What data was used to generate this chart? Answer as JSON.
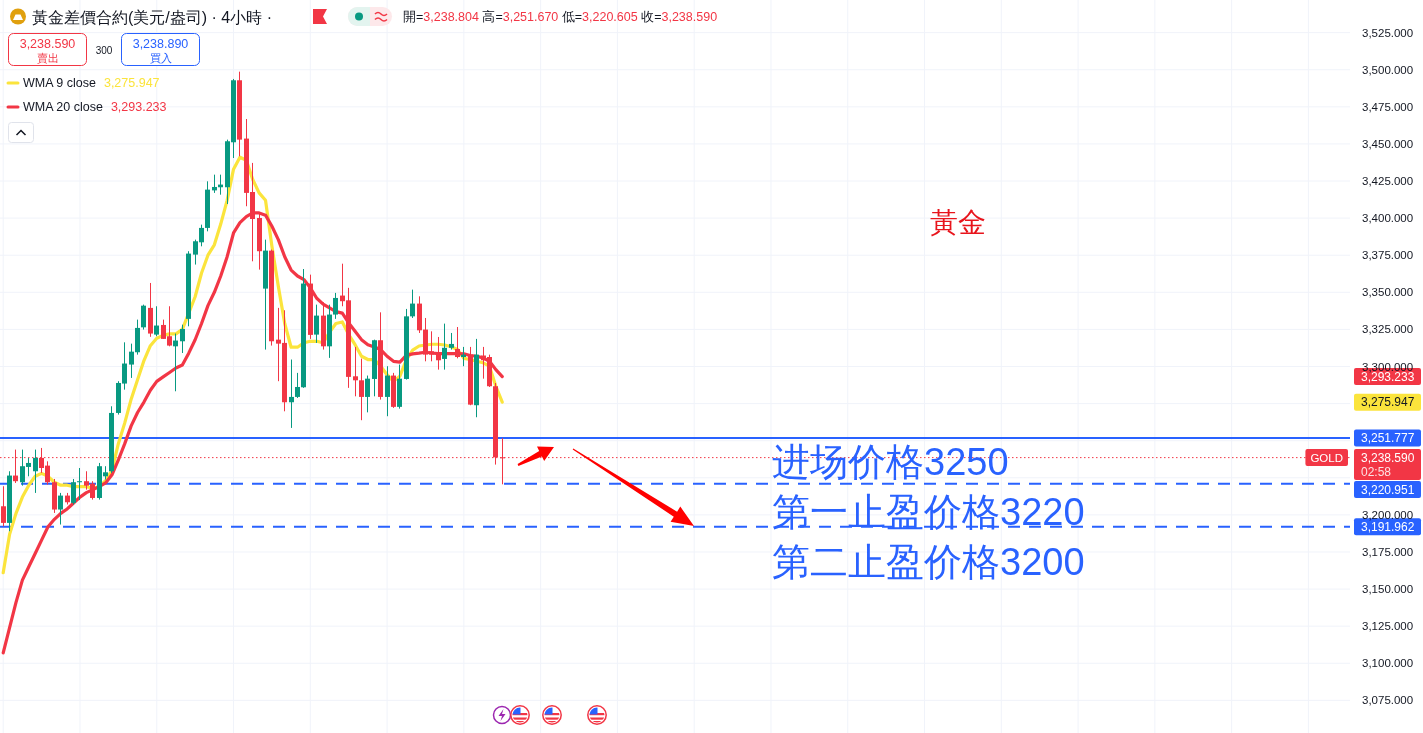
{
  "chart_data": {
    "type": "candlestick",
    "title": "黃金差價合約(美元/盎司) · 4小時 ·",
    "subtitle": "開=3,238.804 高=3,251.670 低=3,220.605 收=3,238.590",
    "categories": [
      null,
      null,
      null,
      null,
      null,
      null,
      null,
      null,
      null,
      null,
      null,
      null,
      null,
      null,
      null,
      null,
      null,
      null,
      null,
      null,
      null,
      null,
      null,
      null,
      null,
      null,
      null,
      null,
      null,
      null,
      null,
      null,
      null,
      null,
      null,
      null,
      null,
      null,
      null,
      null,
      null,
      null,
      null,
      null,
      null,
      null,
      null,
      null,
      null,
      null,
      null,
      null,
      null,
      null,
      null,
      null,
      null,
      null,
      null,
      null,
      null,
      null,
      null,
      null,
      null,
      null,
      null,
      null,
      null,
      null,
      null,
      null,
      null,
      null,
      null,
      null,
      null,
      null,
      null,
      null,
      null,
      null,
      null,
      null,
      null,
      null,
      null,
      null,
      null,
      null,
      null,
      null,
      null,
      null,
      null,
      null,
      null,
      null,
      null,
      null,
      null,
      null,
      null,
      null,
      null,
      null,
      null,
      null,
      null,
      null,
      null,
      null,
      null,
      null,
      null,
      null,
      null,
      null,
      null,
      null,
      null,
      null,
      null,
      null,
      null,
      null,
      null,
      null,
      null,
      null,
      null,
      null,
      null,
      null,
      null,
      null,
      null,
      null,
      null,
      null,
      null,
      null,
      null,
      null,
      null,
      null,
      null,
      null,
      null,
      null,
      null,
      null,
      null,
      null,
      null,
      null,
      null,
      null,
      null,
      null,
      null,
      null,
      null,
      null,
      null,
      null,
      null,
      null,
      null,
      null,
      null,
      null,
      null,
      null,
      null,
      null,
      null,
      null,
      null,
      null,
      null,
      null,
      null,
      null,
      null,
      null,
      null,
      null,
      null,
      null,
      null,
      null,
      null,
      null,
      null,
      null,
      null,
      null,
      null,
      null,
      null,
      null,
      null,
      null,
      null,
      null,
      null,
      null,
      null,
      null,
      null
    ],
    "ohlc": [
      [
        3205.8,
        3219.3,
        3192.3,
        3194.6
      ],
      [
        3194.6,
        3229.4,
        3189.0,
        3226.5
      ],
      [
        3226.5,
        3244.0,
        3221.5,
        3222.7
      ],
      [
        3222.0,
        3244.0,
        3219.7,
        3232.8
      ],
      [
        3232.3,
        3238.4,
        3226.0,
        3235.0
      ],
      [
        3229.4,
        3244.0,
        3214.8,
        3238.4
      ],
      [
        3238.4,
        3245.1,
        3228.3,
        3231.6
      ],
      [
        3233.2,
        3236.1,
        3220.4,
        3222.0
      ],
      [
        3222.0,
        3224.2,
        3201.3,
        3203.6
      ],
      [
        3203.6,
        3214.8,
        3193.5,
        3213.0
      ],
      [
        3213.0,
        3214.8,
        3207.0,
        3208.5
      ],
      [
        3208.1,
        3224.2,
        3207.0,
        3222.0
      ],
      [
        3222.0,
        3231.6,
        3210.0,
        3222.7
      ],
      [
        3222.7,
        3229.4,
        3217.0,
        3219.7
      ],
      [
        3221.1,
        3222.7,
        3210.3,
        3211.4
      ],
      [
        3211.4,
        3235.0,
        3210.3,
        3232.8
      ],
      [
        3226.0,
        3232.8,
        3223.8,
        3228.7
      ],
      [
        3229.4,
        3273.2,
        3228.3,
        3268.7
      ],
      [
        3268.7,
        3290.1,
        3267.6,
        3288.9
      ],
      [
        3288.5,
        3316.3,
        3284.4,
        3302.0
      ],
      [
        3301.3,
        3315.4,
        3292.3,
        3310.0
      ],
      [
        3309.6,
        3331.6,
        3308.0,
        3326.0
      ],
      [
        3326.4,
        3341.7,
        3324.9,
        3341.0
      ],
      [
        3339.5,
        3356.3,
        3320.0,
        3322.2
      ],
      [
        3321.5,
        3340.6,
        3320.4,
        3327.6
      ],
      [
        3328.0,
        3331.6,
        3318.6,
        3318.6
      ],
      [
        3320.4,
        3340.6,
        3313.6,
        3314.1
      ],
      [
        3313.6,
        3322.2,
        3283.3,
        3317.5
      ],
      [
        3317.0,
        3328.2,
        3309.1,
        3325.3
      ],
      [
        3332.1,
        3377.7,
        3327.1,
        3376.1
      ],
      [
        3375.4,
        3385.5,
        3368.7,
        3384.4
      ],
      [
        3383.7,
        3395.6,
        3381.0,
        3393.4
      ],
      [
        3393.4,
        3424.8,
        3391.1,
        3419.2
      ],
      [
        3418.7,
        3429.3,
        3417.0,
        3421.0
      ],
      [
        3420.8,
        3429.3,
        3415.8,
        3422.6
      ],
      [
        3420.8,
        3452.9,
        3409.5,
        3451.8
      ],
      [
        3451.1,
        3493.8,
        3440.5,
        3492.9
      ],
      [
        3492.9,
        3498.7,
        3441.7,
        3452.9
      ],
      [
        3453.6,
        3466.8,
        3408.0,
        3417.0
      ],
      [
        3417.6,
        3437.2,
        3370.9,
        3399.4
      ],
      [
        3400.1,
        3403.5,
        3365.3,
        3377.7
      ],
      [
        3352.5,
        3385.5,
        3311.4,
        3378.1
      ],
      [
        3378.1,
        3378.8,
        3314.1,
        3317.0
      ],
      [
        3318.1,
        3339.5,
        3290.1,
        3315.4
      ],
      [
        3315.9,
        3337.9,
        3269.8,
        3275.9
      ],
      [
        3275.9,
        3304.7,
        3258.6,
        3279.5
      ],
      [
        3279.5,
        3295.7,
        3278.8,
        3286.2
      ],
      [
        3286.0,
        3365.7,
        3285.6,
        3355.9
      ],
      [
        3355.9,
        3361.9,
        3318.6,
        3321.3
      ],
      [
        3321.5,
        3341.7,
        3315.9,
        3334.3
      ],
      [
        3334.3,
        3343.3,
        3311.4,
        3313.6
      ],
      [
        3313.6,
        3341.7,
        3305.8,
        3335.0
      ],
      [
        3335.0,
        3349.6,
        3332.1,
        3346.2
      ],
      [
        3347.8,
        3369.3,
        3340.6,
        3344.0
      ],
      [
        3344.6,
        3353.0,
        3285.6,
        3293.0
      ],
      [
        3293.4,
        3313.2,
        3279.9,
        3290.7
      ],
      [
        3290.7,
        3305.3,
        3263.8,
        3279.5
      ],
      [
        3279.5,
        3293.9,
        3269.1,
        3291.8
      ],
      [
        3291.6,
        3318.1,
        3279.9,
        3317.7
      ],
      [
        3317.7,
        3336.5,
        3277.7,
        3279.5
      ],
      [
        3279.5,
        3300.2,
        3266.5,
        3293.9
      ],
      [
        3293.9,
        3295.7,
        3272.1,
        3272.8
      ],
      [
        3272.8,
        3301.3,
        3271.6,
        3291.8
      ],
      [
        3291.6,
        3338.8,
        3291.2,
        3333.8
      ],
      [
        3333.8,
        3351.8,
        3332.7,
        3342.4
      ],
      [
        3342.4,
        3347.3,
        3322.6,
        3324.4
      ],
      [
        3324.9,
        3332.7,
        3303.5,
        3308.0
      ],
      [
        3310.3,
        3323.7,
        3303.5,
        3308.0
      ],
      [
        3308.0,
        3319.9,
        3297.9,
        3304.2
      ],
      [
        3305.1,
        3328.9,
        3297.9,
        3312.6
      ],
      [
        3312.6,
        3322.6,
        3311.4,
        3315.2
      ],
      [
        3311.8,
        3326.6,
        3305.5,
        3306.4
      ],
      [
        3306.4,
        3313.2,
        3300.2,
        3308.0
      ],
      [
        3308.0,
        3313.2,
        3273.9,
        3274.3
      ],
      [
        3273.9,
        3318.6,
        3265.8,
        3308.0
      ],
      [
        3307.4,
        3313.2,
        3291.8,
        3304.2
      ],
      [
        3306.4,
        3308.0,
        3286.2,
        3286.7
      ],
      [
        3286.7,
        3288.9,
        3233.9,
        3238.8
      ],
      [
        3238.804,
        3251.67,
        3220.605,
        3238.59
      ],
      null,
      null,
      null,
      null,
      null,
      null,
      null,
      null,
      null,
      null,
      null,
      null,
      null,
      null,
      null,
      null,
      null,
      null,
      null,
      null,
      null,
      null,
      null,
      null,
      null,
      null,
      null,
      null,
      null,
      null,
      null,
      null,
      null,
      null,
      null,
      null,
      null,
      null,
      null,
      null,
      null,
      null,
      null,
      null,
      null,
      null,
      null,
      null,
      null,
      null,
      null,
      null,
      null,
      null,
      null,
      null,
      null,
      null,
      null,
      null,
      null,
      null,
      null,
      null,
      null,
      null,
      null,
      null,
      null,
      null,
      null,
      null,
      null,
      null,
      null,
      null,
      null,
      null,
      null,
      null,
      null,
      null,
      null,
      null,
      null,
      null,
      null,
      null,
      null,
      null,
      null,
      null,
      null,
      null,
      null,
      null,
      null,
      null,
      null,
      null,
      null,
      null,
      null,
      null,
      null,
      null,
      null,
      null,
      null,
      null,
      null,
      null,
      null,
      null,
      null,
      null,
      null,
      null,
      null,
      null,
      null,
      null,
      null,
      null,
      null,
      null,
      null,
      null,
      null,
      null,
      null,
      null
    ],
    "colors": [
      "#f23645",
      "#089981",
      "#f23645",
      "#089981",
      "#089981",
      "#089981",
      "#f23645",
      "#f23645",
      "#f23645",
      "#089981",
      "#f23645",
      "#089981",
      "#089981",
      "#f23645",
      "#f23645",
      "#089981",
      "#089981",
      "#089981",
      "#089981",
      "#089981",
      "#089981",
      "#089981",
      "#089981",
      "#f23645",
      "#089981",
      "#f23645",
      "#f23645",
      "#089981",
      "#089981",
      "#089981",
      "#089981",
      "#089981",
      "#089981",
      "#089981",
      "#089981",
      "#089981",
      "#089981",
      "#f23645",
      "#f23645",
      "#f23645",
      "#f23645",
      "#089981",
      "#f23645",
      "#f23645",
      "#f23645",
      "#089981",
      "#089981",
      "#089981",
      "#f23645",
      "#089981",
      "#f23645",
      "#089981",
      "#089981",
      "#f23645",
      "#f23645",
      "#f23645",
      "#f23645",
      "#089981",
      "#089981",
      "#f23645",
      "#089981",
      "#f23645",
      "#089981",
      "#089981",
      "#089981",
      "#f23645",
      "#f23645",
      "#f23645",
      "#f23645",
      "#089981",
      "#089981",
      "#f23645",
      "#089981",
      "#f23645",
      "#089981",
      "#f23645",
      "#f23645",
      "#f23645",
      "#f23645",
      null,
      null,
      null,
      null,
      null,
      null,
      null,
      null,
      null,
      null,
      null,
      null,
      null,
      null,
      null,
      null,
      null,
      null,
      null,
      null,
      null,
      null,
      null,
      null,
      null,
      null,
      null,
      null,
      null,
      null,
      null,
      null,
      null,
      null,
      null,
      null,
      null,
      null,
      null,
      null,
      null,
      null,
      null,
      null,
      null,
      null,
      null,
      null,
      null,
      null,
      null,
      null,
      null,
      null,
      null,
      null,
      null,
      null,
      null,
      null,
      null,
      null,
      null,
      null,
      null,
      null,
      null,
      null,
      null,
      null,
      null,
      null,
      null,
      null,
      null,
      null,
      null,
      null,
      null,
      null,
      null,
      null,
      null,
      null,
      null,
      null,
      null,
      null,
      null,
      null,
      null,
      null,
      null,
      null,
      null,
      null,
      null,
      null,
      null,
      null,
      null,
      null,
      null,
      null,
      null,
      null,
      null,
      null,
      null,
      null,
      null,
      null,
      null,
      null,
      null,
      null,
      null,
      null,
      null,
      null,
      null,
      null,
      null,
      null,
      null,
      null,
      null,
      null,
      null,
      null,
      null,
      null
    ],
    "series": [
      {
        "name": "WMA 9 close",
        "type": "line",
        "color": "#fbe43c",
        "values": [
          3161,
          3187,
          3201,
          3212,
          3220,
          3226,
          3228,
          3226,
          3222,
          3220,
          3220,
          3219,
          3219,
          3219,
          3218,
          3219,
          3223,
          3230,
          3248,
          3262,
          3278,
          3291,
          3304,
          3314,
          3319,
          3321,
          3322,
          3322,
          3325,
          3336,
          3347,
          3363,
          3375,
          3382,
          3396,
          3412,
          3433,
          3441,
          3439,
          3426,
          3417,
          3412,
          3381,
          3354,
          3329,
          3313,
          3313,
          3316,
          3317,
          3317,
          3316,
          3323,
          3329,
          3330,
          3321.5,
          3314.7,
          3306.9,
          3304.7,
          3304.7,
          3300.2,
          3294.5,
          3290.0,
          3293.4,
          3304.5,
          3311,
          3313.8,
          3314.5,
          3315,
          3315,
          3314.5,
          3313.3,
          3311.5,
          3305.5,
          3304.7,
          3303.5,
          3302.5,
          3300.2,
          3286.7,
          3275.947,
          null,
          null,
          null,
          null,
          null,
          null,
          null,
          null,
          null,
          null,
          null,
          null,
          null,
          null,
          null,
          null,
          null,
          null,
          null,
          null,
          null,
          null,
          null,
          null,
          null,
          null,
          null,
          null,
          null,
          null,
          null,
          null,
          null,
          null,
          null,
          null,
          null,
          null,
          null,
          null,
          null,
          null,
          null,
          null,
          null,
          null,
          null,
          null,
          null,
          null,
          null,
          null,
          null,
          null,
          null,
          null,
          null,
          null,
          null,
          null,
          null,
          null,
          null,
          null,
          null,
          null,
          null,
          null,
          null,
          null,
          null,
          null,
          null,
          null,
          null,
          null,
          null,
          null,
          null,
          null,
          null,
          null,
          null,
          null,
          null,
          null,
          null,
          null,
          null,
          null,
          null,
          null,
          null,
          null,
          null,
          null,
          null,
          null,
          null,
          null,
          null,
          null,
          null,
          null,
          null,
          null,
          null,
          null,
          null,
          null,
          null,
          null,
          null,
          null,
          null,
          null,
          null,
          null,
          null,
          null,
          null,
          null,
          null,
          null,
          null,
          null,
          null,
          null,
          null,
          null,
          null,
          null
        ]
      },
      {
        "name": "WMA 20 close",
        "type": "line",
        "color": "#f23645",
        "values": [
          3107,
          3124,
          3141,
          3156,
          3165,
          3174,
          3183,
          3192,
          3197,
          3201,
          3204,
          3208,
          3212,
          3215,
          3217,
          3219,
          3221.5,
          3227,
          3237,
          3248,
          3260,
          3269,
          3276,
          3284,
          3290,
          3293,
          3296,
          3299,
          3301,
          3309,
          3318,
          3329,
          3341,
          3350,
          3361,
          3374,
          3390,
          3397,
          3401,
          3403.5,
          3403.5,
          3402,
          3394.5,
          3385.5,
          3374,
          3365,
          3361,
          3358.6,
          3353,
          3346,
          3342,
          3339.5,
          3337,
          3336,
          3329.4,
          3323.7,
          3318.1,
          3314.7,
          3313.2,
          3311.4,
          3306.9,
          3303.5,
          3302.9,
          3307.5,
          3308.5,
          3309,
          3309.6,
          3309.1,
          3308.7,
          3308.7,
          3308.7,
          3308.7,
          3308.5,
          3307.4,
          3306.9,
          3305.8,
          3303.5,
          3297.9,
          3293.233,
          null,
          null,
          null,
          null,
          null,
          null,
          null,
          null,
          null,
          null,
          null,
          null,
          null,
          null,
          null,
          null,
          null,
          null,
          null,
          null,
          null,
          null,
          null,
          null,
          null,
          null,
          null,
          null,
          null,
          null,
          null,
          null,
          null,
          null,
          null,
          null,
          null,
          null,
          null,
          null,
          null,
          null,
          null,
          null,
          null,
          null,
          null,
          null,
          null,
          null,
          null,
          null,
          null,
          null,
          null,
          null,
          null,
          null,
          null,
          null,
          null,
          null,
          null,
          null,
          null,
          null,
          null,
          null,
          null,
          null,
          null,
          null,
          null,
          null,
          null,
          null,
          null,
          null,
          null,
          null,
          null,
          null,
          null,
          null,
          null,
          null,
          null,
          null,
          null,
          null,
          null,
          null,
          null,
          null,
          null,
          null,
          null,
          null,
          null,
          null,
          null,
          null,
          null,
          null,
          null,
          null,
          null,
          null,
          null,
          null,
          null,
          null,
          null,
          null,
          null,
          null,
          null,
          null,
          null,
          null,
          null,
          null,
          null,
          null,
          null,
          null,
          null,
          null,
          null,
          null,
          null,
          null
        ]
      }
    ],
    "ylim": [
      3053,
      3547
    ],
    "yticks": [
      {
        "value": 3075,
        "label": "3,075.000"
      },
      {
        "value": 3100,
        "label": "3,100.000"
      },
      {
        "value": 3125,
        "label": "3,125.000"
      },
      {
        "value": 3150,
        "label": "3,150.000"
      },
      {
        "value": 3175,
        "label": "3,175.000"
      },
      {
        "value": 3200,
        "label": "3,200.000"
      },
      {
        "value": 3225,
        "label": null
      },
      {
        "value": 3250,
        "label": null
      },
      {
        "value": 3275,
        "label": null
      },
      {
        "value": 3300,
        "label": "3,300.000"
      },
      {
        "value": 3325,
        "label": "3,325.000"
      },
      {
        "value": 3350,
        "label": "3,350.000"
      },
      {
        "value": 3375,
        "label": "3,375.000"
      },
      {
        "value": 3400,
        "label": "3,400.000"
      },
      {
        "value": 3425,
        "label": "3,425.000"
      },
      {
        "value": 3450,
        "label": "3,450.000"
      },
      {
        "value": 3475,
        "label": "3,475.000"
      },
      {
        "value": 3500,
        "label": "3,500.000"
      },
      {
        "value": 3525,
        "label": "3,525.000"
      }
    ],
    "ref_lines": [
      {
        "axis": "y",
        "value": 3251.777,
        "label": "3,251.777",
        "color": "#2962ff",
        "line_style": "solid"
      },
      {
        "axis": "y",
        "value": 3238.59,
        "label": "3,238.590\n02:58",
        "color": "#f23645",
        "line_style": "dotted"
      },
      {
        "axis": "y",
        "value": 3220.951,
        "label": "3,220.951",
        "color": "#2962ff",
        "line_style": "dashed"
      },
      {
        "axis": "y",
        "value": 3191.962,
        "label": "3,191.962",
        "color": "#2962ff",
        "line_style": "dashed"
      }
    ],
    "annotations": [
      "3,238.590",
      "賣出",
      "300",
      "3,238.890",
      "買入",
      "黃金",
      "进场价格3250",
      "第一止盈价格3220",
      "第二止盈价格3200",
      "3,293.233",
      "3,275.947",
      {
        "text": "GOLD",
        "y": 3238.59
      }
    ],
    "legend": "top left",
    "grid": true,
    "tick_labels": "y"
  }
}
